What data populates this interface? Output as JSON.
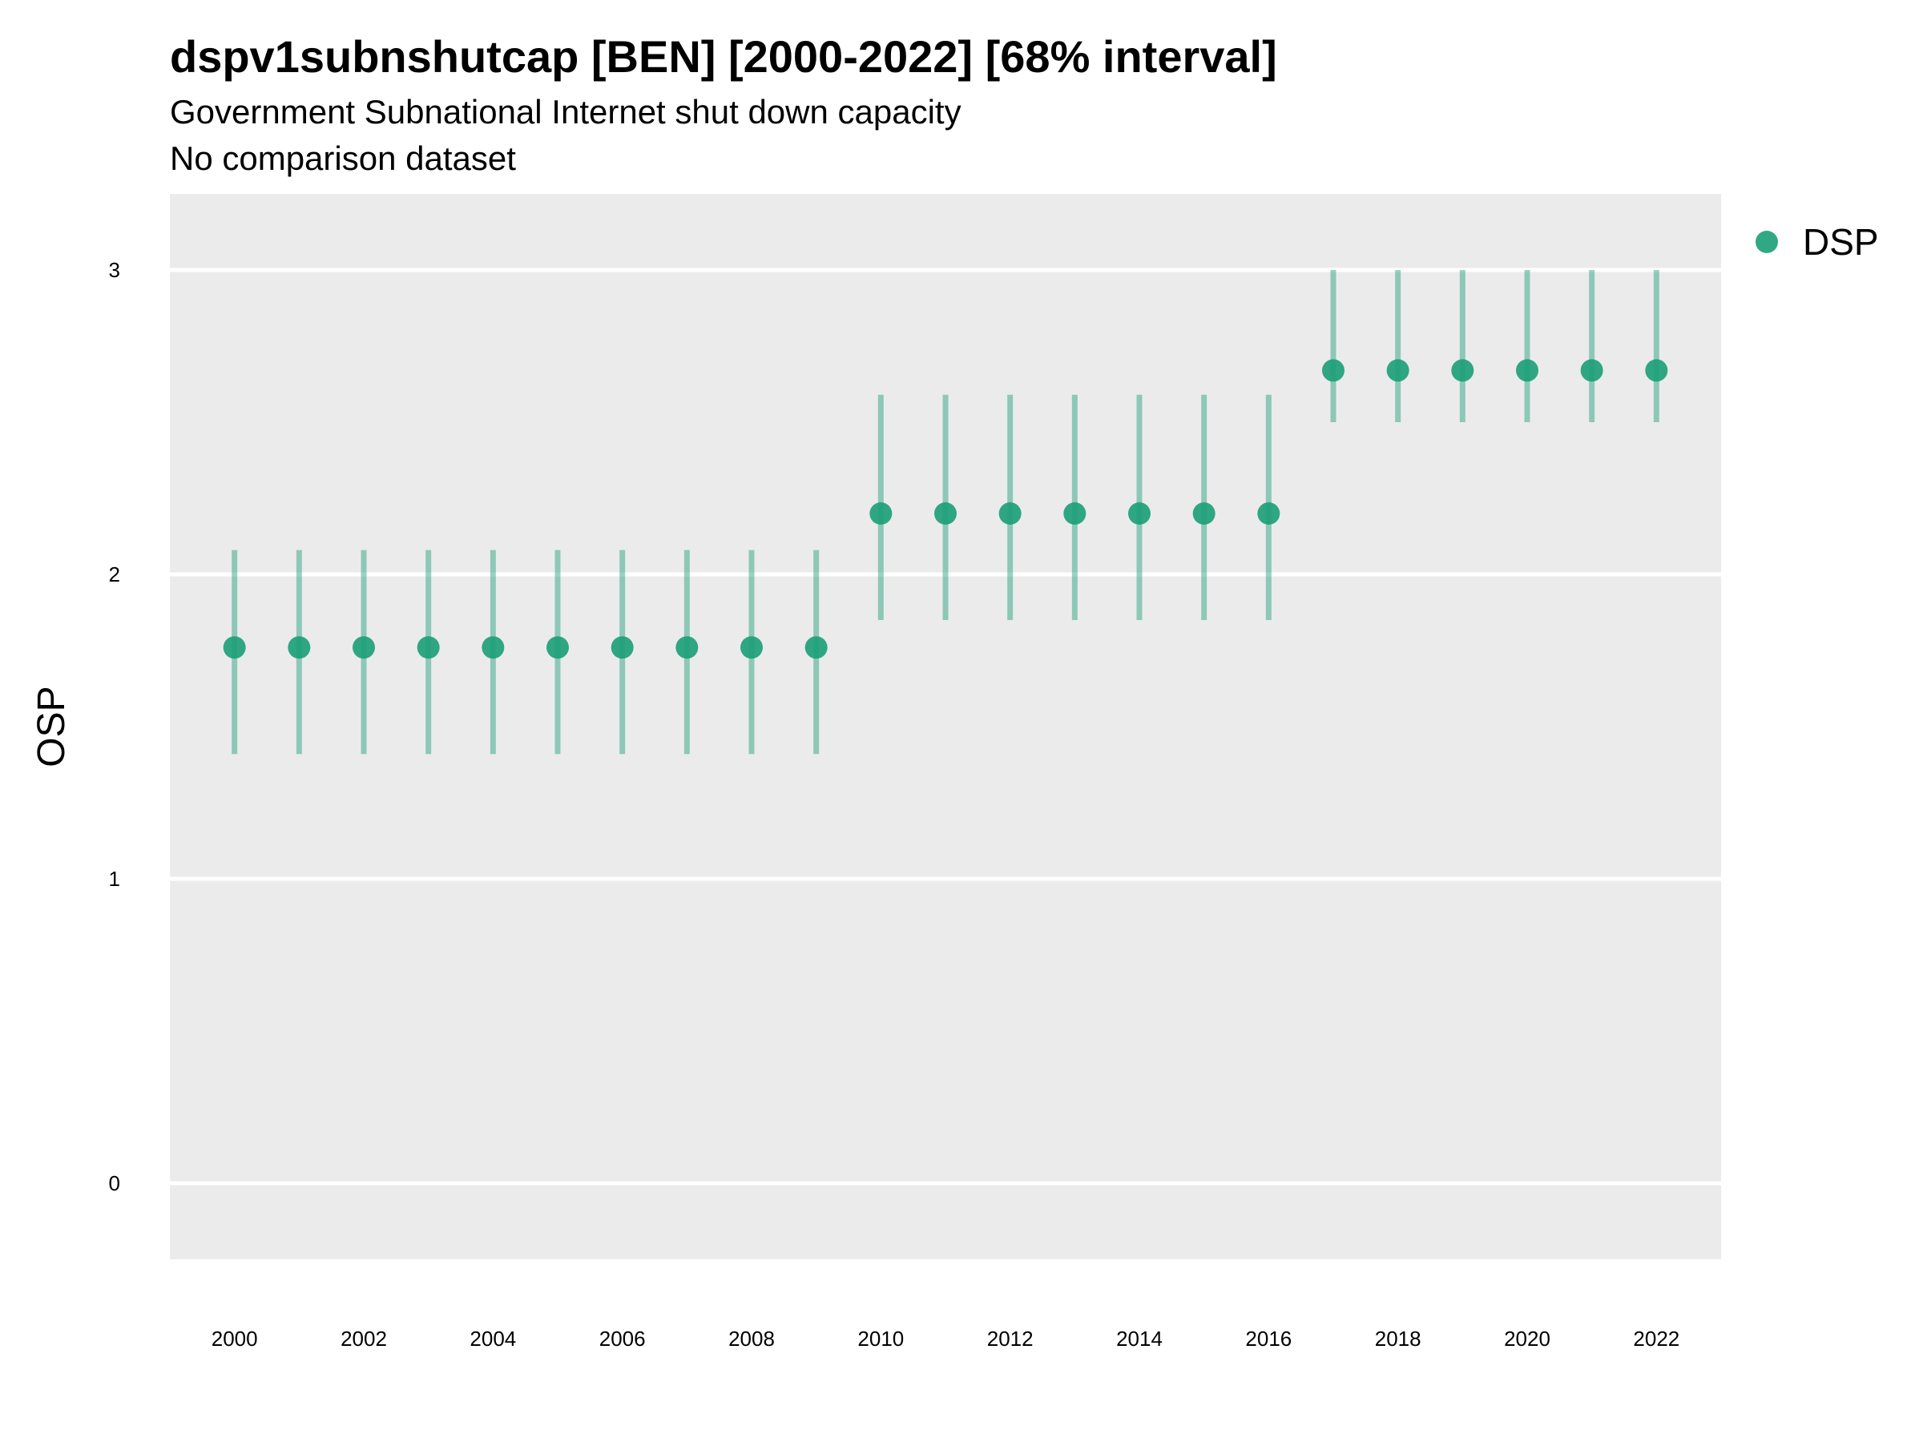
{
  "chart_data": {
    "type": "scatter",
    "title": "dspv1subnshutcap [BEN] [2000-2022] [68% interval]",
    "subtitle": "Government Subnational Internet shut down capacity",
    "subtitle2": "No comparison dataset",
    "xlabel": "",
    "ylabel": "OSP",
    "ylim": [
      -0.25,
      3.25
    ],
    "xlim": [
      1999,
      2023
    ],
    "yticks": [
      0,
      1,
      2,
      3
    ],
    "xticks": [
      2000,
      2002,
      2004,
      2006,
      2008,
      2010,
      2012,
      2014,
      2016,
      2018,
      2020,
      2022
    ],
    "grid": true,
    "legend_position": "top-right",
    "series": [
      {
        "name": "DSP",
        "color": "#1b9e77",
        "x": [
          2000,
          2001,
          2002,
          2003,
          2004,
          2005,
          2006,
          2007,
          2008,
          2009,
          2010,
          2011,
          2012,
          2013,
          2014,
          2015,
          2016,
          2017,
          2018,
          2019,
          2020,
          2021,
          2022
        ],
        "y": [
          1.76,
          1.76,
          1.76,
          1.76,
          1.76,
          1.76,
          1.76,
          1.76,
          1.76,
          1.76,
          2.2,
          2.2,
          2.2,
          2.2,
          2.2,
          2.2,
          2.2,
          2.67,
          2.67,
          2.67,
          2.67,
          2.67,
          2.67
        ],
        "low": [
          1.41,
          1.41,
          1.41,
          1.41,
          1.41,
          1.41,
          1.41,
          1.41,
          1.41,
          1.41,
          1.85,
          1.85,
          1.85,
          1.85,
          1.85,
          1.85,
          1.85,
          2.5,
          2.5,
          2.5,
          2.5,
          2.5,
          2.5
        ],
        "high": [
          2.08,
          2.08,
          2.08,
          2.08,
          2.08,
          2.08,
          2.08,
          2.08,
          2.08,
          2.08,
          2.59,
          2.59,
          2.59,
          2.59,
          2.59,
          2.59,
          2.59,
          3.0,
          3.0,
          3.0,
          3.0,
          3.0,
          3.0
        ]
      }
    ]
  }
}
